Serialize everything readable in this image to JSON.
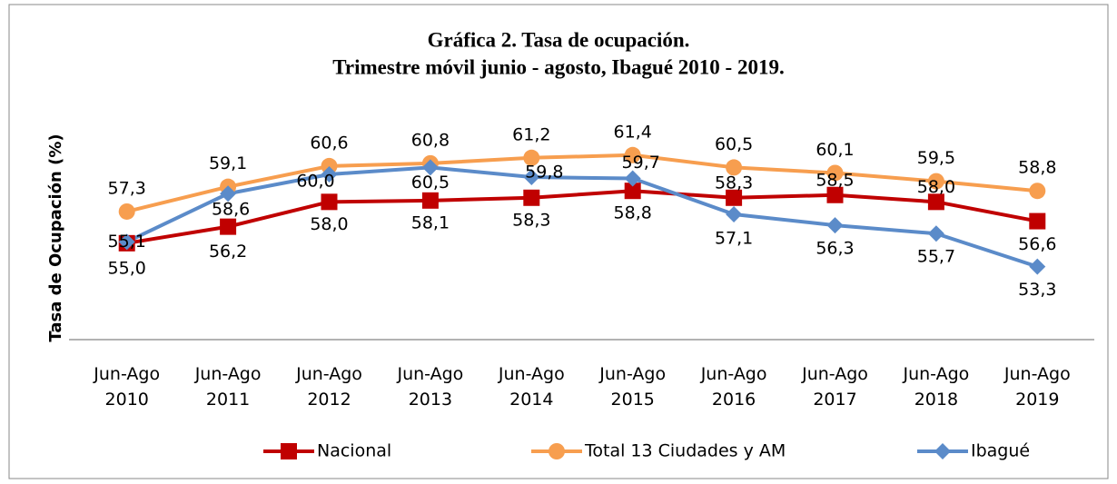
{
  "chart_data": {
    "type": "line",
    "title": "Gráfica 2. Tasa de ocupación.",
    "subtitle": "Trimestre móvil junio - agosto, Ibagué 2010 - 2019.",
    "y_label": "Tasa de Ocupación (%)",
    "categories": [
      "Jun-Ago 2010",
      "Jun-Ago 2011",
      "Jun-Ago 2012",
      "Jun-Ago 2013",
      "Jun-Ago 2014",
      "Jun-Ago 2015",
      "Jun-Ago 2016",
      "Jun-Ago 2017",
      "Jun-Ago 2018",
      "Jun-Ago 2019"
    ],
    "ylim": [
      48,
      66
    ],
    "grid": false,
    "legend": "bottom",
    "series": [
      {
        "name": "Nacional",
        "color": "#c00000",
        "marker": "square",
        "values": [
          55.0,
          56.2,
          58.0,
          58.1,
          58.3,
          58.8,
          58.3,
          58.5,
          58.0,
          56.6
        ],
        "value_labels": [
          "55,0",
          "56,2",
          "58,0",
          "58,1",
          "58,3",
          "58,8",
          "58,3",
          "58,5",
          "58,0",
          "56,6"
        ]
      },
      {
        "name": "Total 13 Ciudades y AM",
        "color": "#f79e4f",
        "marker": "circle",
        "values": [
          57.3,
          59.1,
          60.6,
          60.8,
          61.2,
          61.4,
          60.5,
          60.1,
          59.5,
          58.8
        ],
        "value_labels": [
          "57,3",
          "59,1",
          "60,6",
          "60,8",
          "61,2",
          "61,4",
          "60,5",
          "60,1",
          "59,5",
          "58,8"
        ]
      },
      {
        "name": "Ibagué",
        "color": "#5b8bc9",
        "marker": "diamond",
        "values": [
          55.1,
          58.6,
          60.0,
          60.5,
          59.8,
          59.7,
          57.1,
          56.3,
          55.7,
          53.3
        ],
        "value_labels": [
          "55,1",
          "58,6",
          "60,0",
          "60,5",
          "59,8",
          "59,7",
          "57,1",
          "56,3",
          "55,7",
          "53,3"
        ]
      }
    ]
  }
}
